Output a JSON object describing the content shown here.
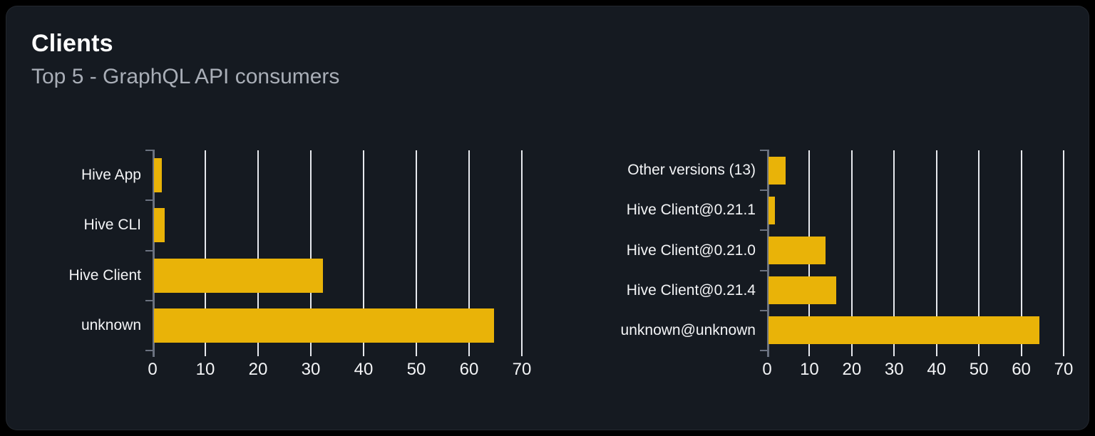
{
  "card": {
    "title": "Clients",
    "subtitle": "Top 5 - GraphQL API consumers"
  },
  "colors": {
    "page_bg": "#000000",
    "card_bg": "#151a21",
    "bar": "#e9b308",
    "axis": "#6b7280",
    "grid": "#e7e9ee",
    "title_text": "#ffffff",
    "subtitle_text": "#a9aeb7",
    "label_text": "#f3f4f6"
  },
  "chart_data": [
    {
      "type": "bar",
      "orientation": "horizontal",
      "title": "",
      "categories": [
        "Hive App",
        "Hive CLI",
        "Hive Client",
        "unknown"
      ],
      "values": [
        1.5,
        2,
        32,
        64.5
      ],
      "xlabel": "",
      "ylabel": "",
      "xlim": [
        0,
        70
      ],
      "xticks": [
        0,
        10,
        20,
        30,
        40,
        50,
        60,
        70
      ],
      "grid": true,
      "legend": false
    },
    {
      "type": "bar",
      "orientation": "horizontal",
      "title": "",
      "categories": [
        "Other versions (13)",
        "Hive Client@0.21.1",
        "Hive Client@0.21.0",
        "Hive Client@0.21.4",
        "unknown@unknown"
      ],
      "values": [
        4,
        1.5,
        13.5,
        16,
        64
      ],
      "xlabel": "",
      "ylabel": "",
      "xlim": [
        0,
        70
      ],
      "xticks": [
        0,
        10,
        20,
        30,
        40,
        50,
        60,
        70
      ],
      "grid": true,
      "legend": false
    }
  ]
}
